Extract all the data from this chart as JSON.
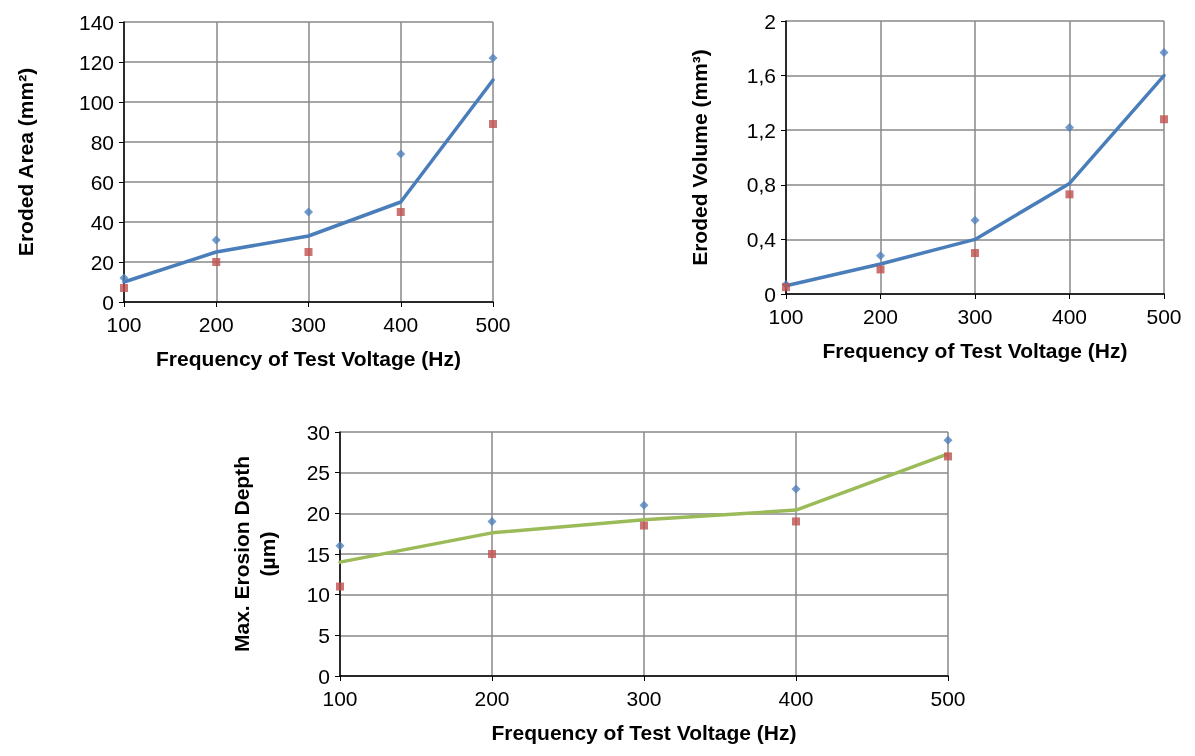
{
  "chart_data": [
    {
      "type": "line",
      "xlabel": "Frequency of Test Voltage (Hz)",
      "ylabel": "Eroded Area (mm²)",
      "x": [
        100,
        200,
        300,
        400,
        500
      ],
      "xlim": [
        100,
        500
      ],
      "xticks": [
        100,
        200,
        300,
        400,
        500
      ],
      "ylim": [
        0,
        140
      ],
      "yticks": [
        0,
        20,
        40,
        60,
        80,
        100,
        120,
        140
      ],
      "grid": true,
      "series": [
        {
          "type": "scatter",
          "marker": "diamond",
          "color": "#4f81bd",
          "values": [
            12,
            31,
            45,
            74,
            122
          ]
        },
        {
          "type": "scatter",
          "marker": "square",
          "color": "#c0504d",
          "values": [
            7,
            20,
            25,
            45,
            89
          ]
        },
        {
          "type": "line",
          "color": "#4a7ebb",
          "values": [
            10,
            25,
            33,
            50,
            111
          ]
        }
      ]
    },
    {
      "type": "line",
      "xlabel": "Frequency of Test Voltage (Hz)",
      "ylabel": "Eroded Volume (mm³)",
      "x": [
        100,
        200,
        300,
        400,
        500
      ],
      "xlim": [
        100,
        500
      ],
      "xticks": [
        100,
        200,
        300,
        400,
        500
      ],
      "ylim": [
        0,
        2
      ],
      "yticks": [
        0,
        {
          "value": 0.4,
          "label": "0,4"
        },
        {
          "value": 0.8,
          "label": "0,8"
        },
        {
          "value": 1.2,
          "label": "1,2"
        },
        {
          "value": 1.6,
          "label": "1,6"
        },
        2
      ],
      "grid": true,
      "series": [
        {
          "type": "scatter",
          "marker": "diamond",
          "color": "#4f81bd",
          "values": [
            0.07,
            0.28,
            0.54,
            1.22,
            1.77
          ]
        },
        {
          "type": "scatter",
          "marker": "square",
          "color": "#c0504d",
          "values": [
            0.05,
            0.18,
            0.3,
            0.73,
            1.28
          ]
        },
        {
          "type": "line",
          "color": "#4a7ebb",
          "values": [
            0.06,
            0.22,
            0.4,
            0.81,
            1.6
          ]
        }
      ]
    },
    {
      "type": "line",
      "xlabel": "Frequency of Test Voltage (Hz)",
      "ylabel": "Max. Erosion Depth\n(µm)",
      "x": [
        100,
        200,
        300,
        400,
        500
      ],
      "xlim": [
        100,
        500
      ],
      "xticks": [
        100,
        200,
        300,
        400,
        500
      ],
      "ylim": [
        0,
        30
      ],
      "yticks": [
        0,
        5,
        10,
        15,
        20,
        25,
        30
      ],
      "grid": true,
      "series": [
        {
          "type": "scatter",
          "marker": "diamond",
          "color": "#4f81bd",
          "values": [
            16,
            19,
            21,
            23,
            29
          ]
        },
        {
          "type": "scatter",
          "marker": "square",
          "color": "#c0504d",
          "values": [
            11,
            15,
            18.5,
            19,
            27
          ]
        },
        {
          "type": "line",
          "color": "#9bbb59",
          "values": [
            14,
            17.6,
            19.2,
            20.4,
            27.3
          ]
        }
      ]
    }
  ]
}
